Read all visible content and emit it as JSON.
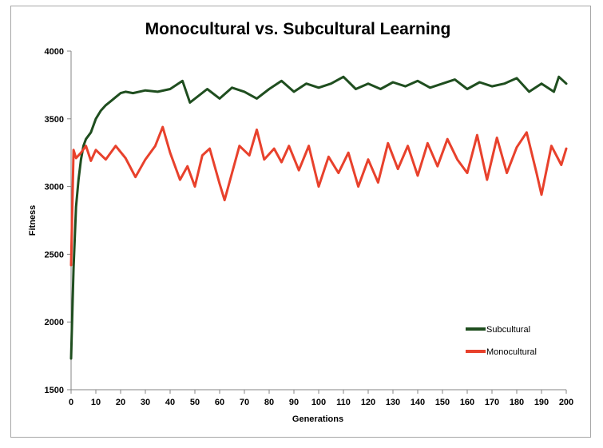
{
  "chart_data": {
    "type": "line",
    "title": "Monocultural vs. Subcultural Learning",
    "xlabel": "Generations",
    "ylabel": "Fitness",
    "xlim": [
      0,
      200
    ],
    "ylim": [
      1500,
      4000
    ],
    "xticks": [
      0,
      10,
      20,
      30,
      40,
      50,
      60,
      70,
      80,
      90,
      100,
      110,
      120,
      130,
      140,
      150,
      160,
      170,
      180,
      190,
      200
    ],
    "yticks": [
      1500,
      2000,
      2500,
      3000,
      3500,
      4000
    ],
    "grid": false,
    "legend_position": "bottom-right",
    "series": [
      {
        "name": "Subcultural",
        "color": "#1f4e1f",
        "x": [
          0,
          1,
          2,
          3,
          4,
          5,
          6,
          8,
          10,
          12,
          14,
          16,
          18,
          20,
          22,
          25,
          30,
          35,
          40,
          45,
          48,
          55,
          60,
          65,
          70,
          75,
          80,
          85,
          90,
          95,
          100,
          105,
          110,
          115,
          120,
          125,
          130,
          135,
          140,
          145,
          150,
          155,
          160,
          165,
          170,
          175,
          180,
          185,
          190,
          195,
          197,
          200
        ],
        "values": [
          1730,
          2400,
          2850,
          3050,
          3200,
          3300,
          3350,
          3400,
          3500,
          3560,
          3600,
          3630,
          3660,
          3690,
          3700,
          3690,
          3710,
          3700,
          3720,
          3780,
          3620,
          3720,
          3650,
          3730,
          3700,
          3650,
          3720,
          3780,
          3700,
          3760,
          3730,
          3760,
          3810,
          3720,
          3760,
          3720,
          3770,
          3740,
          3780,
          3730,
          3760,
          3790,
          3720,
          3770,
          3740,
          3760,
          3800,
          3700,
          3760,
          3700,
          3810,
          3760
        ]
      },
      {
        "name": "Monocultural",
        "color": "#e8412c",
        "x": [
          0,
          1,
          2,
          4,
          6,
          8,
          10,
          14,
          18,
          22,
          26,
          30,
          34,
          37,
          40,
          44,
          47,
          50,
          53,
          56,
          60,
          62,
          65,
          68,
          72,
          75,
          78,
          82,
          85,
          88,
          92,
          96,
          100,
          104,
          108,
          112,
          116,
          120,
          124,
          128,
          132,
          136,
          140,
          144,
          148,
          152,
          156,
          160,
          164,
          168,
          172,
          176,
          180,
          184,
          188,
          190,
          194,
          198,
          200
        ],
        "values": [
          2420,
          3270,
          3210,
          3250,
          3300,
          3190,
          3270,
          3200,
          3300,
          3210,
          3070,
          3200,
          3300,
          3440,
          3250,
          3050,
          3150,
          3000,
          3230,
          3280,
          3020,
          2900,
          3100,
          3300,
          3230,
          3420,
          3200,
          3280,
          3180,
          3300,
          3120,
          3300,
          3000,
          3220,
          3100,
          3250,
          3000,
          3200,
          3030,
          3320,
          3130,
          3300,
          3080,
          3320,
          3150,
          3350,
          3200,
          3100,
          3380,
          3050,
          3360,
          3100,
          3290,
          3400,
          3100,
          2940,
          3300,
          3160,
          3280
        ]
      }
    ]
  }
}
